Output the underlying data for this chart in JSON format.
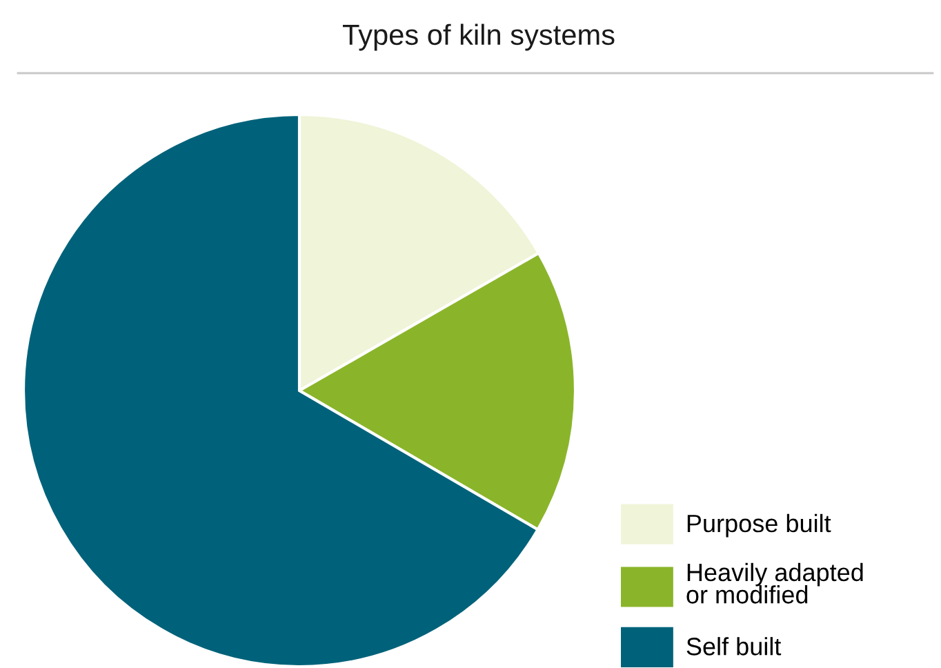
{
  "chart_data": {
    "type": "pie",
    "title": "Types of kiln systems",
    "categories": [
      "Purpose built",
      "Heavily adapted or modified",
      "Self built"
    ],
    "values": [
      16.7,
      16.7,
      66.6
    ],
    "colors": [
      "#f0f4d8",
      "#8ab52a",
      "#00627a"
    ],
    "legend": "bottom right"
  }
}
